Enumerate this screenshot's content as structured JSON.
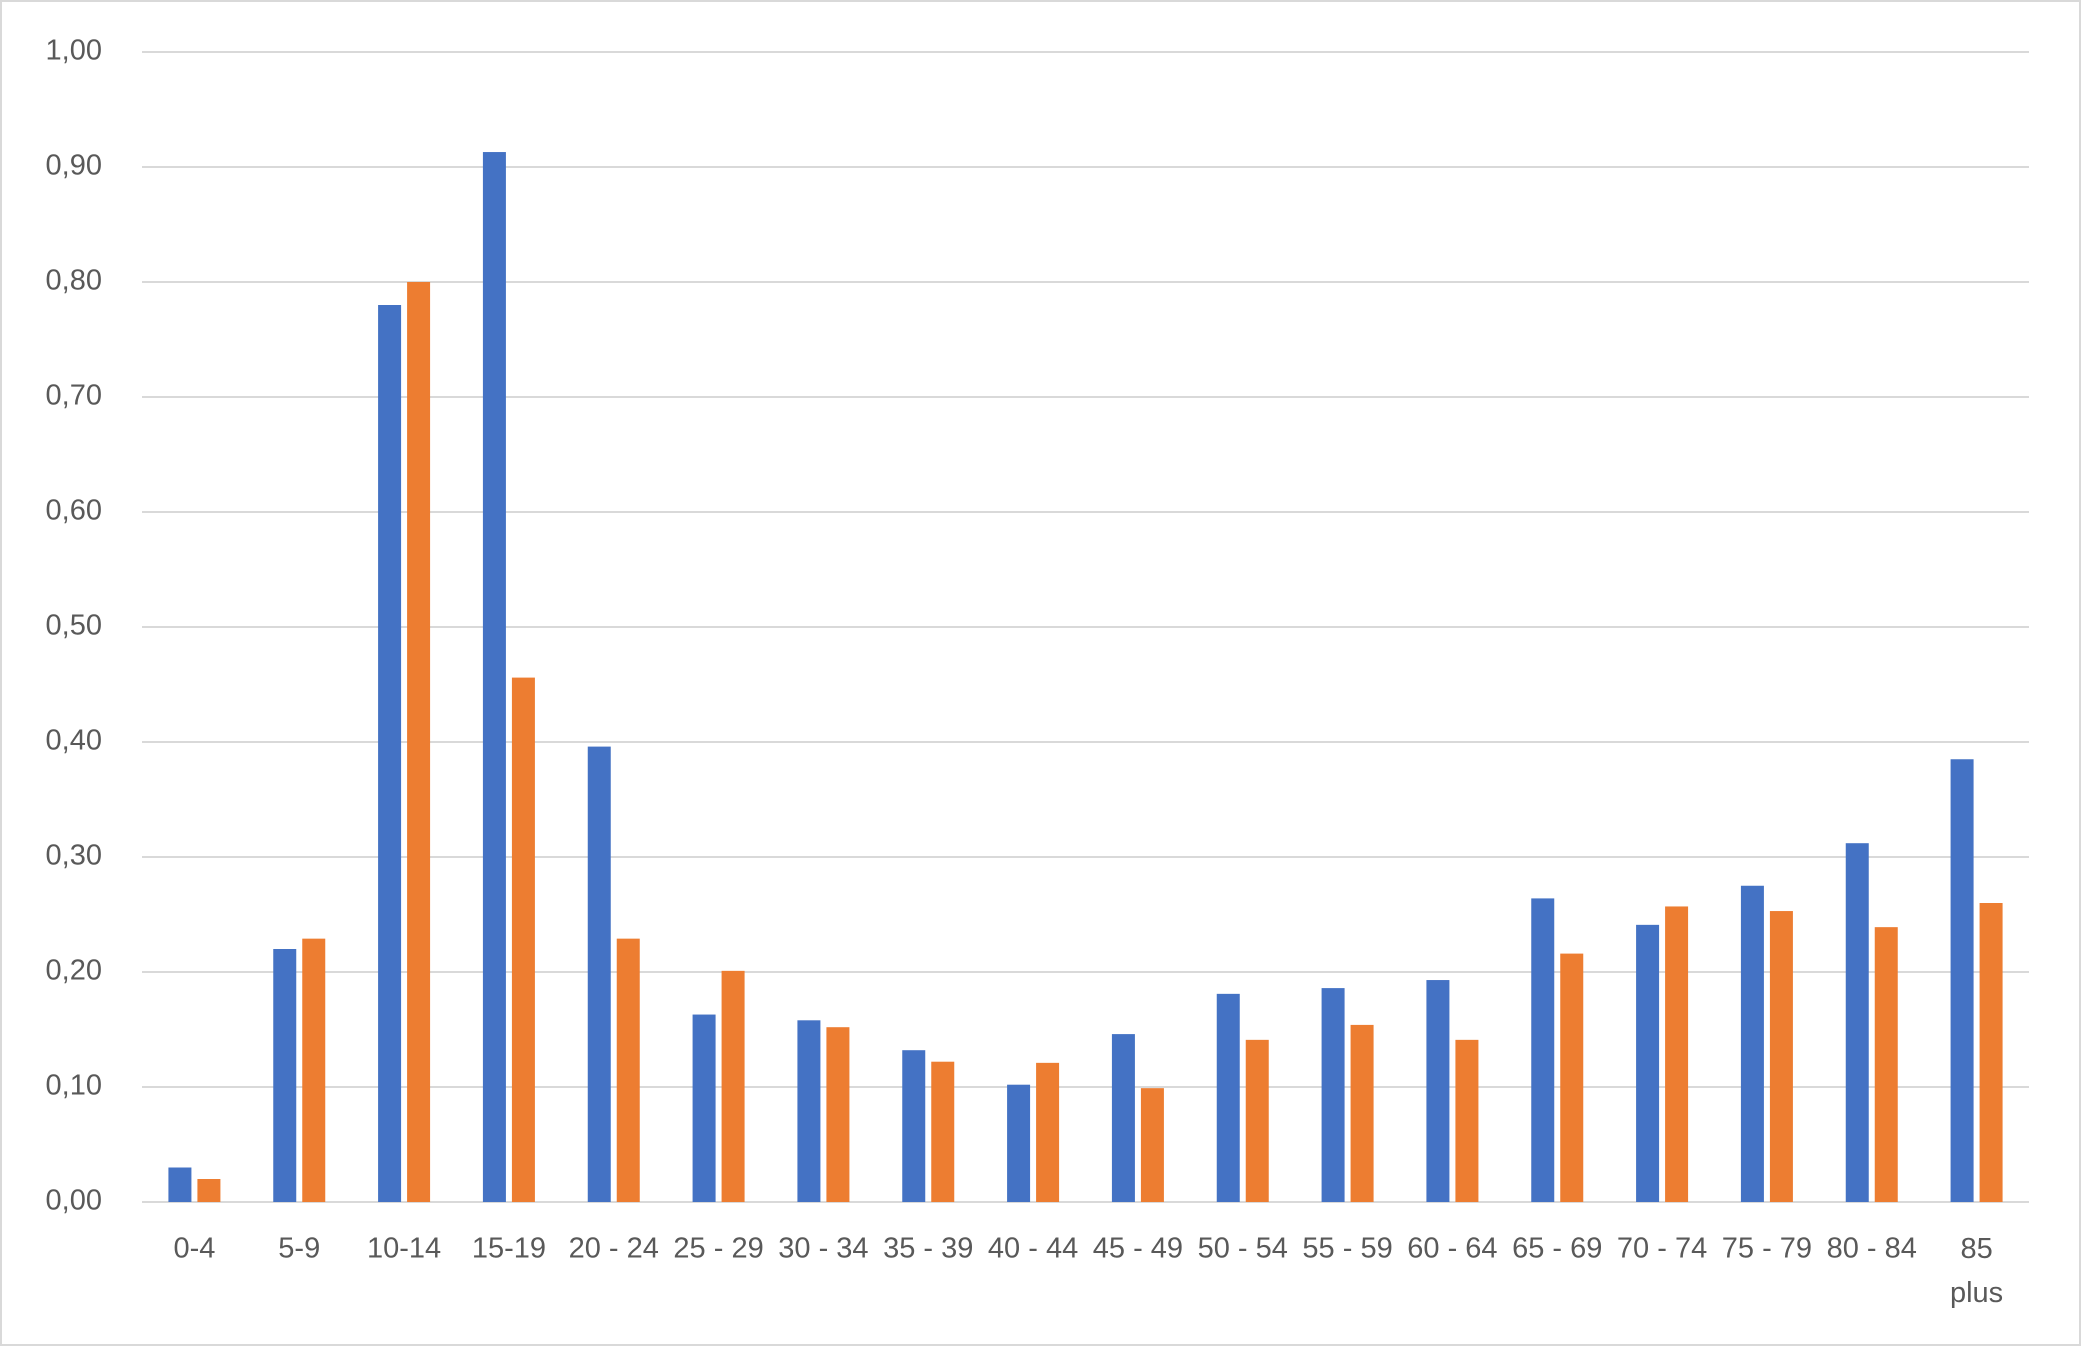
{
  "chart_data": {
    "type": "bar",
    "categories": [
      "0-4",
      "5-9",
      "10-14",
      "15-19",
      "20 - 24",
      "25 - 29",
      "30 - 34",
      "35 - 39",
      "40 - 44",
      "45 - 49",
      "50 - 54",
      "55 - 59",
      "60 - 64",
      "65 - 69",
      "70 - 74",
      "75 - 79",
      "80 - 84",
      "85 plus"
    ],
    "series": [
      {
        "color": "#4472c4",
        "values": [
          0.03,
          0.22,
          0.78,
          0.913,
          0.396,
          0.163,
          0.158,
          0.132,
          0.102,
          0.146,
          0.181,
          0.186,
          0.193,
          0.264,
          0.241,
          0.275,
          0.312,
          0.385
        ]
      },
      {
        "color": "#ed7d31",
        "values": [
          0.02,
          0.229,
          0.8,
          0.456,
          0.229,
          0.201,
          0.152,
          0.122,
          0.121,
          0.099,
          0.141,
          0.154,
          0.141,
          0.216,
          0.257,
          0.253,
          0.239,
          0.26
        ]
      }
    ],
    "ylim": [
      0,
      1
    ],
    "yticks": [
      {
        "value": 0,
        "label": "0,00"
      },
      {
        "value": 0.1,
        "label": "0,10"
      },
      {
        "value": 0.2,
        "label": "0,20"
      },
      {
        "value": 0.3,
        "label": "0,30"
      },
      {
        "value": 0.4,
        "label": "0,40"
      },
      {
        "value": 0.5,
        "label": "0,50"
      },
      {
        "value": 0.6,
        "label": "0,60"
      },
      {
        "value": 0.7,
        "label": "0,70"
      },
      {
        "value": 0.8,
        "label": "0,80"
      },
      {
        "value": 0.9,
        "label": "0,90"
      },
      {
        "value": 1,
        "label": "1,00"
      }
    ],
    "grid": true
  }
}
